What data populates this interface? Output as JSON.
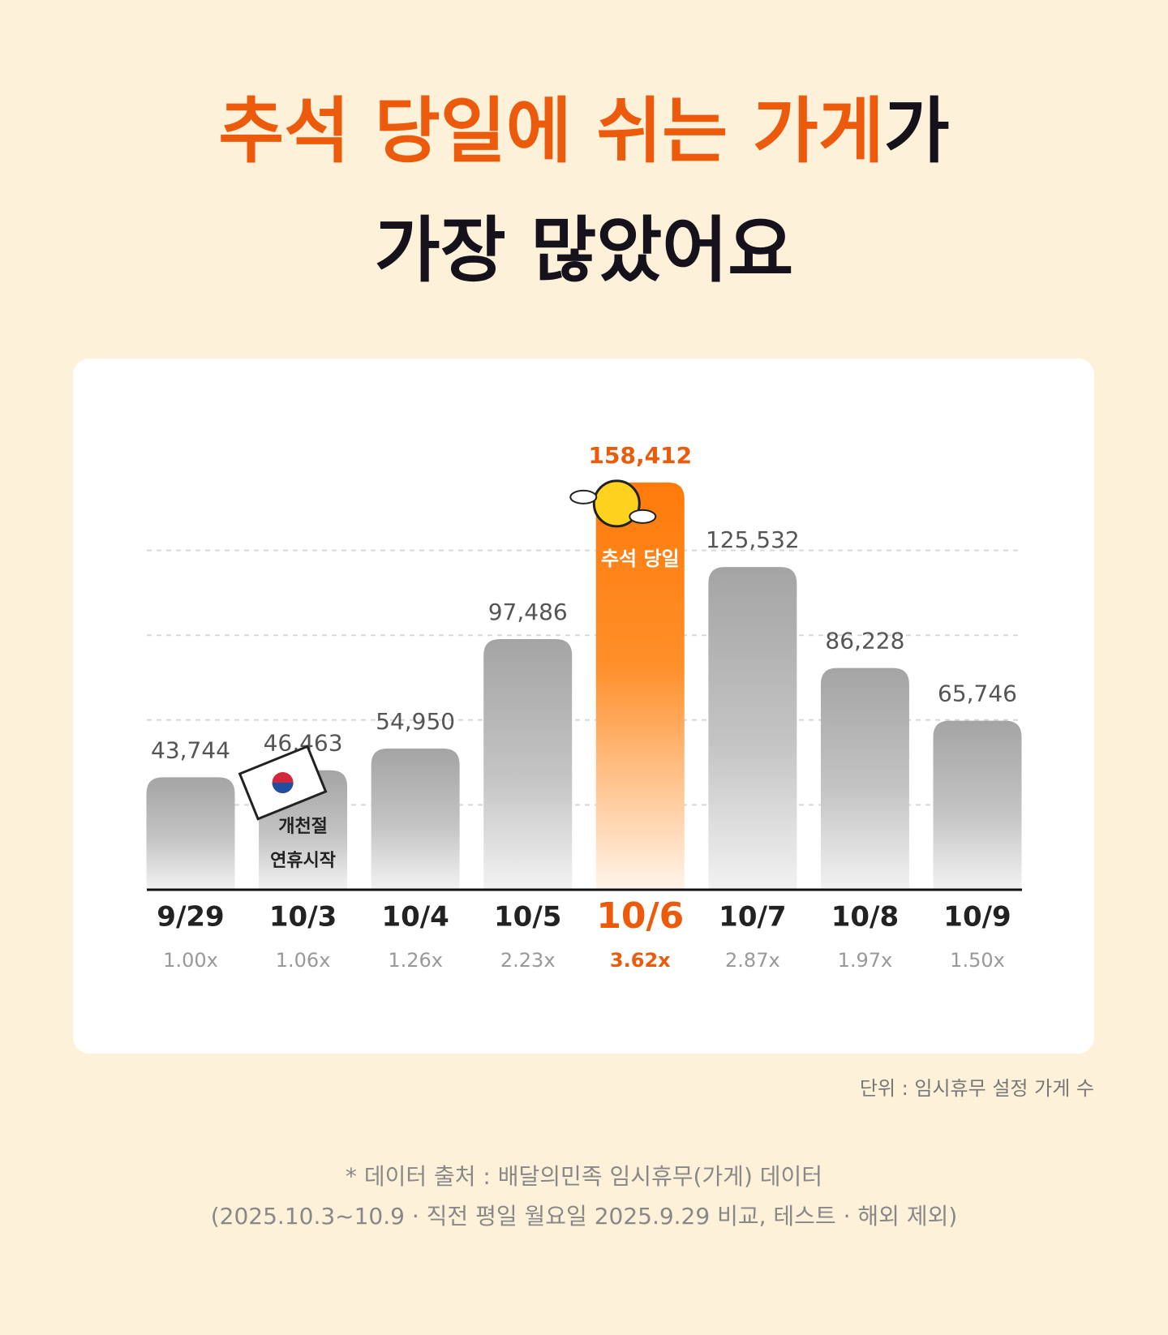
{
  "chart_data": {
    "type": "bar",
    "title_highlight": "추석 당일에 쉬는 가게",
    "title_rest": "가",
    "title_line2": "가장 많았어요",
    "categories": [
      "9/29",
      "10/3",
      "10/4",
      "10/5",
      "10/6",
      "10/7",
      "10/8",
      "10/9"
    ],
    "values": [
      43744,
      46463,
      54950,
      97486,
      158412,
      125532,
      86228,
      65746
    ],
    "value_labels": [
      "43,744",
      "46,463",
      "54,950",
      "97,486",
      "158,412",
      "125,532",
      "86,228",
      "65,746"
    ],
    "multipliers": [
      "1.00x",
      "1.06x",
      "1.26x",
      "2.23x",
      "3.62x",
      "2.87x",
      "1.97x",
      "1.50x"
    ],
    "highlight": 4,
    "color": "#a6a6a6",
    "highlight_color": "#ff7a0a",
    "ylim": [
      0,
      165000
    ],
    "yticks": [
      33000,
      66000,
      99000,
      132000
    ],
    "grid": true,
    "annotations": {
      "holiday": "추석 당일",
      "start_line1": "개천절",
      "start_line2": "연휴시작"
    },
    "unit_note": "단위 : 임시휴무 설정 가게 수",
    "source_line1": "* 데이터 출처 : 배달의민족 임시휴무(가게)  데이터",
    "source_line2": "(2025.10.3~10.9 · 직전 평일 월요일 2025.9.29 비교, 테스트 · 해외 제외)"
  }
}
